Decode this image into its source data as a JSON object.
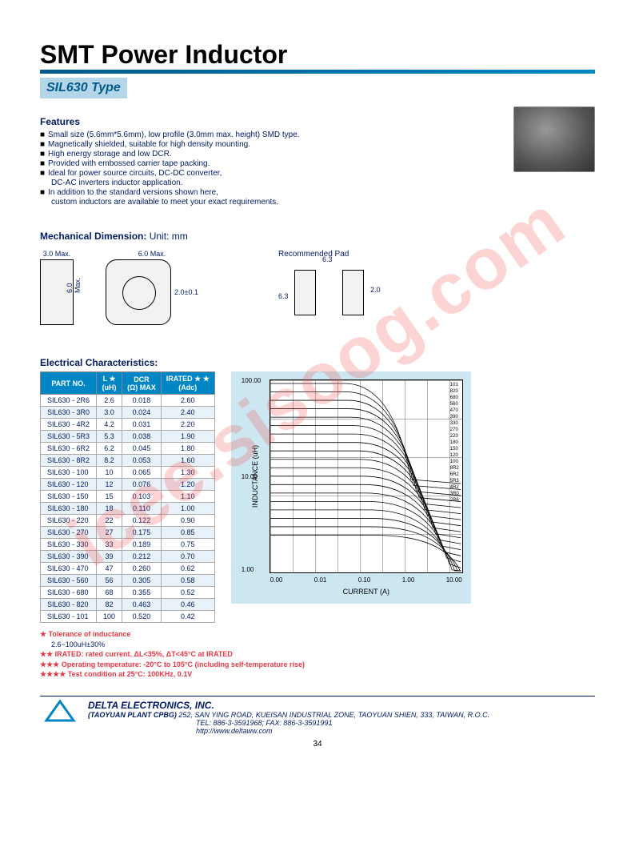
{
  "watermark": "icee.sisoog.com",
  "title": "SMT Power Inductor",
  "subtitle": "SIL630 Type",
  "features": {
    "header": "Features",
    "items": [
      "Small size (5.6mm*5.6mm), low profile (3.0mm max. height) SMD type.",
      "Magnetically shielded, suitable for high density mounting.",
      "High energy storage and low DCR.",
      "Provided with embossed carrier tape packing.",
      "Ideal for power source circuits, DC-DC converter,",
      "In addition to the standard versions shown here,"
    ],
    "subs": {
      "4": "DC-AC inverters inductor application.",
      "5": "custom inductors are available to meet your exact requirements."
    }
  },
  "mechanical": {
    "header": "Mechanical Dimension:",
    "unit": "Unit: mm",
    "side_label": "3.0 Max.",
    "top_w": "6.0 Max.",
    "top_h": "6.0 Max.",
    "terminal": "2.0±0.1",
    "pad_title": "Recommended Pad",
    "pad_63a": "6.3",
    "pad_63b": "6.3",
    "pad_20": "2.0"
  },
  "table": {
    "header": "Electrical Characteristics:",
    "columns": [
      "PART NO.",
      "L ★\n(uH)",
      "DCR\n(Ω) MAX",
      "IRATED ★ ★\n(Adc)"
    ],
    "rows": [
      [
        "SIL630 - 2R6",
        "2.6",
        "0.018",
        "2.60"
      ],
      [
        "SIL630 - 3R0",
        "3.0",
        "0.024",
        "2.40"
      ],
      [
        "SIL630 - 4R2",
        "4.2",
        "0.031",
        "2.20"
      ],
      [
        "SIL630 - 5R3",
        "5.3",
        "0.038",
        "1.90"
      ],
      [
        "SIL630 - 6R2",
        "6.2",
        "0.045",
        "1.80"
      ],
      [
        "SIL630 - 8R2",
        "8.2",
        "0.053",
        "1.60"
      ],
      [
        "SIL630 - 100",
        "10",
        "0.065",
        "1.30"
      ],
      [
        "SIL630 - 120",
        "12",
        "0.076",
        "1.20"
      ],
      [
        "SIL630 - 150",
        "15",
        "0.103",
        "1.10"
      ],
      [
        "SIL630 - 180",
        "18",
        "0.110",
        "1.00"
      ],
      [
        "SIL630 - 220",
        "22",
        "0.122",
        "0.90"
      ],
      [
        "SIL630 - 270",
        "27",
        "0.175",
        "0.85"
      ],
      [
        "SIL630 - 330",
        "33",
        "0.189",
        "0.75"
      ],
      [
        "SIL630 - 390",
        "39",
        "0.212",
        "0.70"
      ],
      [
        "SIL630 - 470",
        "47",
        "0.260",
        "0.62"
      ],
      [
        "SIL630 - 560",
        "56",
        "0.305",
        "0.58"
      ],
      [
        "SIL630 - 680",
        "68",
        "0.355",
        "0.52"
      ],
      [
        "SIL630 - 820",
        "82",
        "0.463",
        "0.46"
      ],
      [
        "SIL630 - 101",
        "100",
        "0.520",
        "0.42"
      ]
    ]
  },
  "chart": {
    "type": "line-log-log",
    "background": "#cce7f2",
    "inner_bg": "#ffffff",
    "line_color": "#000000",
    "ylabel": "INDUCTANCE (uH)",
    "xlabel": "CURRENT (A)",
    "ylim": [
      1,
      100
    ],
    "xlim": [
      0.0,
      10.0
    ],
    "yticks": [
      "100.00",
      "10.00",
      "1.00"
    ],
    "xticks": [
      "0.00",
      "0.01",
      "0.10",
      "1.00",
      "10.00"
    ],
    "series_labels": [
      "101",
      "820",
      "680",
      "560",
      "470",
      "390",
      "330",
      "270",
      "220",
      "180",
      "150",
      "120",
      "100",
      "8R2",
      "6R2",
      "5R3",
      "4R2",
      "3R0",
      "2R6"
    ]
  },
  "notes": {
    "n1": "★ Tolerance of inductance",
    "n1b": "2.6~100uH±30%",
    "n2": "★★ IRATED: rated current.  ΔL<35%, ΔT<45°C  at IRATED",
    "n3": "★★★ Operating temperature: -20°C to 105°C  (including self-temperature rise)",
    "n4": "★★★★ Test condition at 25°C: 100KHz, 0.1V"
  },
  "footer": {
    "company": "DELTA ELECTRONICS, INC.",
    "plant": "(TAOYUAN PLANT CPBG)",
    "address": "252, SAN YING ROAD, KUEISAN INDUSTRIAL ZONE, TAOYUAN SHIEN, 333, TAIWAN, R.O.C.",
    "tel": "TEL: 886-3-3591968; FAX: 886-3-3591991",
    "url": "http://www.deltaww.com",
    "logo_color": "#0086c5"
  },
  "page_number": "34"
}
